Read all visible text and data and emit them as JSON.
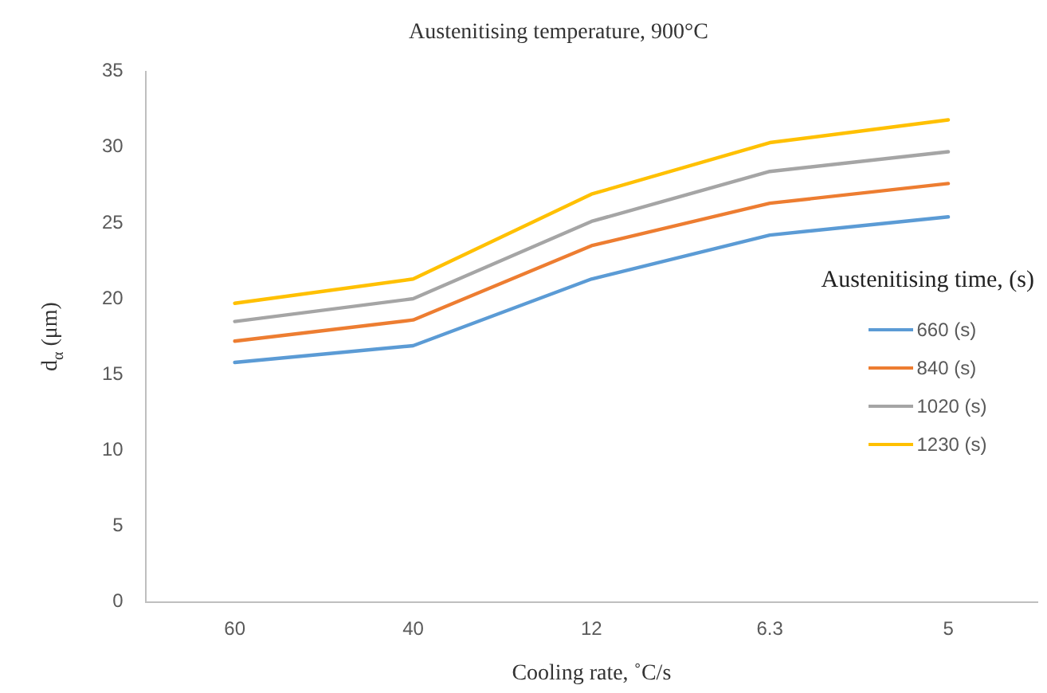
{
  "chart_data": {
    "type": "line",
    "title": "Austenitising temperature, 900°C",
    "xlabel": "Cooling rate, ˚C/s",
    "ylabel": "d$_{α}$ (μm)",
    "legend_title": "Austenitising time, (s)",
    "categories": [
      "60",
      "40",
      "12",
      "6.3",
      "5"
    ],
    "series": [
      {
        "name": "660 (s)",
        "color": "#5b9bd5",
        "values": [
          15.8,
          16.9,
          21.3,
          24.2,
          25.4
        ]
      },
      {
        "name": "840 (s)",
        "color": "#ed7d31",
        "values": [
          17.2,
          18.6,
          23.5,
          26.3,
          27.6
        ]
      },
      {
        "name": "1020 (s)",
        "color": "#a5a5a5",
        "values": [
          18.5,
          20.0,
          25.1,
          28.4,
          29.7
        ]
      },
      {
        "name": "1230 (s)",
        "color": "#ffc000",
        "values": [
          19.7,
          21.3,
          26.9,
          30.3,
          31.8
        ]
      }
    ],
    "ylim": [
      0,
      35
    ],
    "yticks": [
      0,
      5,
      10,
      15,
      20,
      25,
      30,
      35
    ],
    "grid": false,
    "legend": "right",
    "marker": "none",
    "line_style": "solid"
  }
}
